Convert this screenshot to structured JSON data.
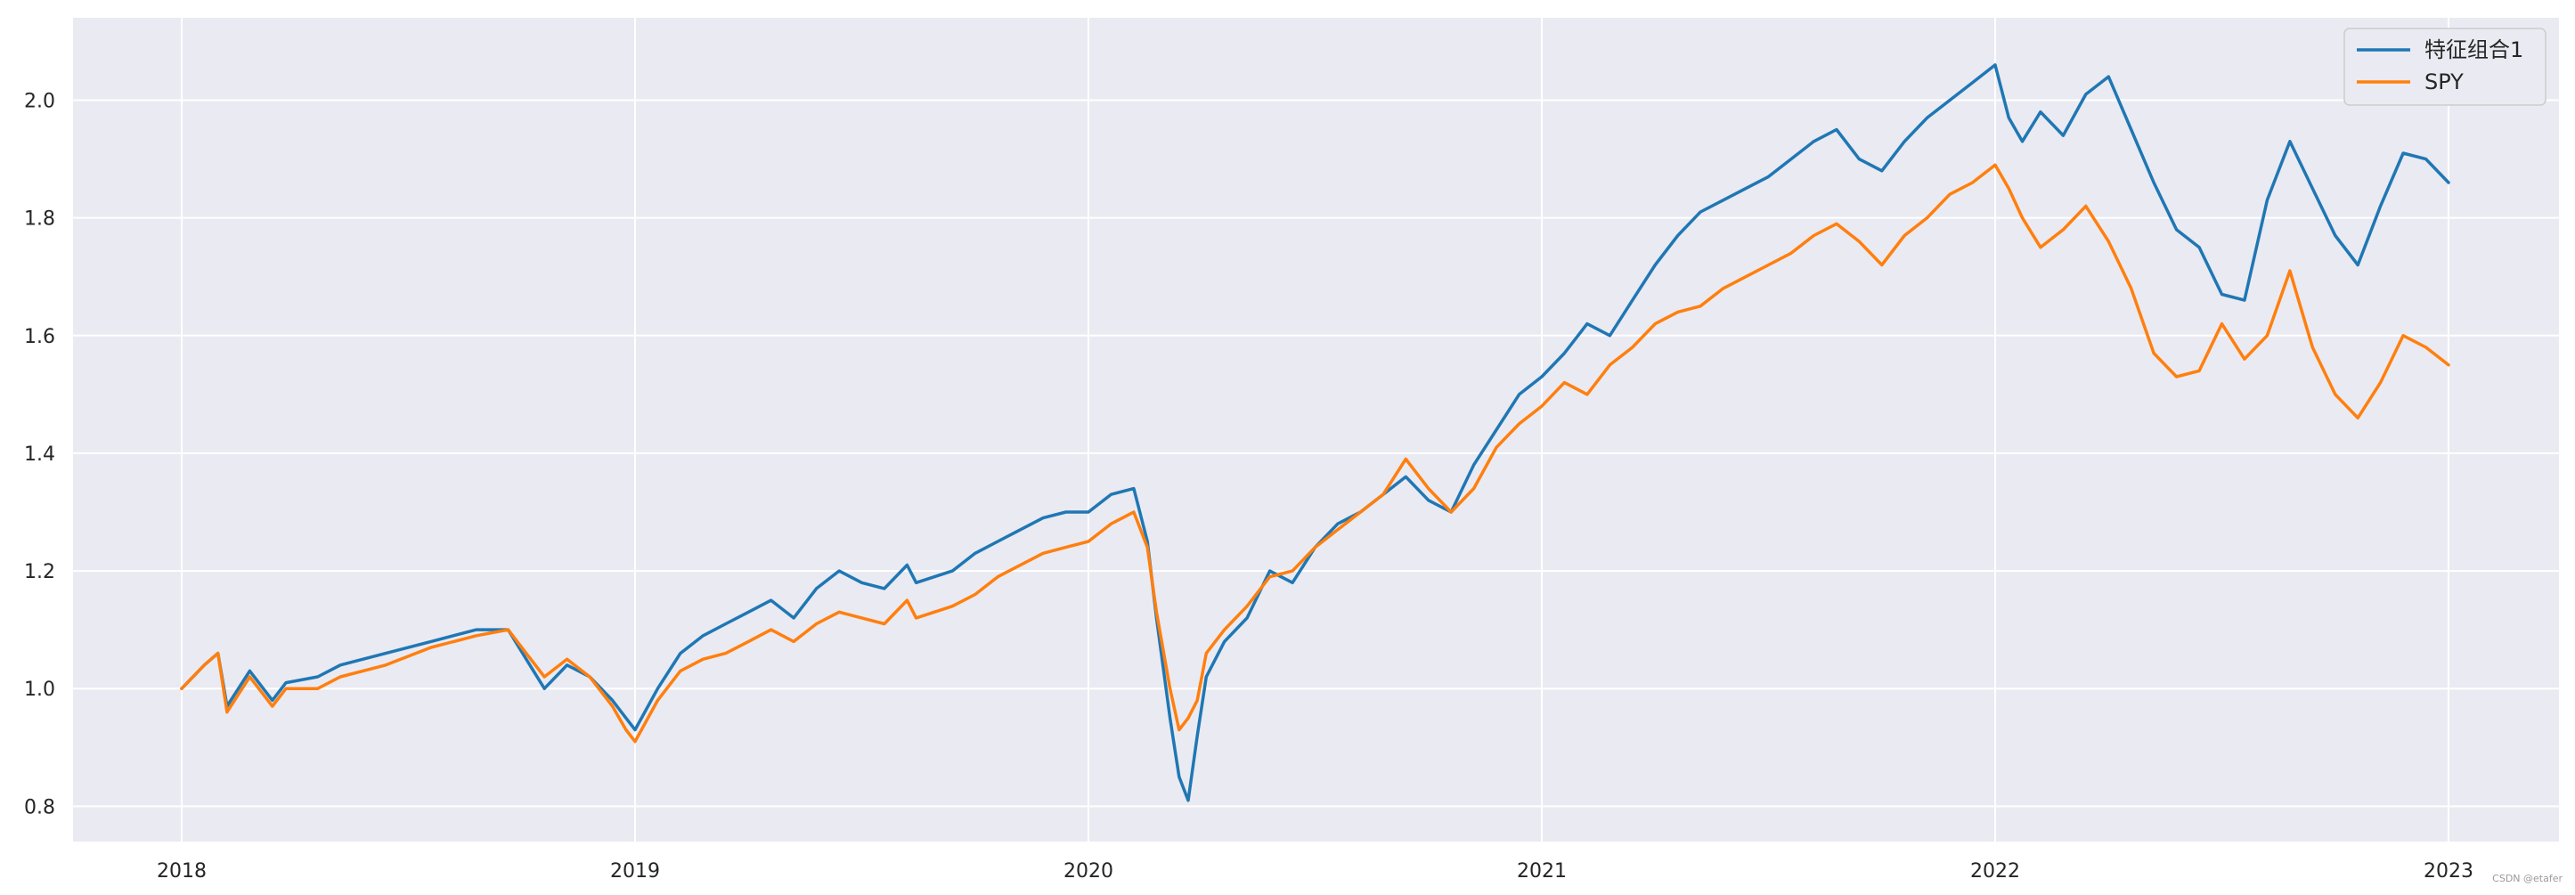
{
  "chart_data": {
    "type": "line",
    "title": "",
    "xlabel": "",
    "ylabel": "",
    "x_ticks": [
      "2018",
      "2019",
      "2020",
      "2021",
      "2022",
      "2023"
    ],
    "y_ticks": [
      "0.8",
      "1.0",
      "1.2",
      "1.4",
      "1.6",
      "1.8",
      "2.0"
    ],
    "xlim": [
      2017.76,
      2024.5
    ],
    "ylim": [
      0.74,
      2.14
    ],
    "grid": true,
    "legend_position": "top-right",
    "series": [
      {
        "name": "特征组合1",
        "color": "#1f77b4",
        "x": [
          2018.0,
          2018.05,
          2018.08,
          2018.1,
          2018.15,
          2018.2,
          2018.23,
          2018.3,
          2018.35,
          2018.45,
          2018.55,
          2018.65,
          2018.72,
          2018.76,
          2018.8,
          2018.85,
          2018.9,
          2018.95,
          2018.98,
          2019.0,
          2019.05,
          2019.1,
          2019.15,
          2019.2,
          2019.25,
          2019.3,
          2019.35,
          2019.4,
          2019.45,
          2019.5,
          2019.55,
          2019.6,
          2019.62,
          2019.7,
          2019.75,
          2019.8,
          2019.85,
          2019.9,
          2019.95,
          2020.0,
          2020.05,
          2020.1,
          2020.13,
          2020.15,
          2020.18,
          2020.2,
          2020.22,
          2020.24,
          2020.26,
          2020.3,
          2020.35,
          2020.4,
          2020.45,
          2020.5,
          2020.55,
          2020.6,
          2020.65,
          2020.7,
          2020.75,
          2020.8,
          2020.85,
          2020.9,
          2020.95,
          2021.0,
          2021.05,
          2021.1,
          2021.15,
          2021.2,
          2021.25,
          2021.3,
          2021.35,
          2021.4,
          2021.45,
          2021.5,
          2021.55,
          2021.6,
          2021.65,
          2021.7,
          2021.75,
          2021.8,
          2021.85,
          2021.9,
          2021.95,
          2022.0,
          2022.03,
          2022.06,
          2022.1,
          2022.15,
          2022.2,
          2022.25,
          2022.3,
          2022.35,
          2022.4,
          2022.45,
          2022.5,
          2022.55,
          2022.6,
          2022.65,
          2022.7,
          2022.75,
          2022.8,
          2022.85,
          2022.9,
          2022.95,
          2023.0
        ],
        "values": [
          1.0,
          1.04,
          1.06,
          0.97,
          1.03,
          0.98,
          1.01,
          1.02,
          1.04,
          1.06,
          1.08,
          1.1,
          1.1,
          1.05,
          1.0,
          1.04,
          1.02,
          0.98,
          0.95,
          0.93,
          1.0,
          1.06,
          1.09,
          1.11,
          1.13,
          1.15,
          1.12,
          1.17,
          1.2,
          1.18,
          1.17,
          1.21,
          1.18,
          1.2,
          1.23,
          1.25,
          1.27,
          1.29,
          1.3,
          1.3,
          1.33,
          1.34,
          1.25,
          1.12,
          0.95,
          0.85,
          0.81,
          0.92,
          1.02,
          1.08,
          1.12,
          1.2,
          1.18,
          1.24,
          1.28,
          1.3,
          1.33,
          1.36,
          1.32,
          1.3,
          1.38,
          1.44,
          1.5,
          1.53,
          1.57,
          1.62,
          1.6,
          1.66,
          1.72,
          1.77,
          1.81,
          1.83,
          1.85,
          1.87,
          1.9,
          1.93,
          1.95,
          1.9,
          1.88,
          1.93,
          1.97,
          2.0,
          2.03,
          2.06,
          1.97,
          1.93,
          1.98,
          1.94,
          2.01,
          2.04,
          1.95,
          1.86,
          1.78,
          1.75,
          1.67,
          1.66,
          1.83,
          1.93,
          1.85,
          1.77,
          1.72,
          1.82,
          1.91,
          1.9,
          1.86
        ]
      },
      {
        "name": "SPY",
        "color": "#ff7f0e",
        "x": [
          2018.0,
          2018.05,
          2018.08,
          2018.1,
          2018.15,
          2018.2,
          2018.23,
          2018.3,
          2018.35,
          2018.45,
          2018.55,
          2018.65,
          2018.72,
          2018.76,
          2018.8,
          2018.85,
          2018.9,
          2018.95,
          2018.98,
          2019.0,
          2019.05,
          2019.1,
          2019.15,
          2019.2,
          2019.25,
          2019.3,
          2019.35,
          2019.4,
          2019.45,
          2019.5,
          2019.55,
          2019.6,
          2019.62,
          2019.7,
          2019.75,
          2019.8,
          2019.85,
          2019.9,
          2019.95,
          2020.0,
          2020.05,
          2020.1,
          2020.13,
          2020.15,
          2020.18,
          2020.2,
          2020.22,
          2020.24,
          2020.26,
          2020.3,
          2020.35,
          2020.4,
          2020.45,
          2020.5,
          2020.55,
          2020.6,
          2020.65,
          2020.7,
          2020.75,
          2020.8,
          2020.85,
          2020.9,
          2020.95,
          2021.0,
          2021.05,
          2021.1,
          2021.15,
          2021.2,
          2021.25,
          2021.3,
          2021.35,
          2021.4,
          2021.45,
          2021.5,
          2021.55,
          2021.6,
          2021.65,
          2021.7,
          2021.75,
          2021.8,
          2021.85,
          2021.9,
          2021.95,
          2022.0,
          2022.03,
          2022.06,
          2022.1,
          2022.15,
          2022.2,
          2022.25,
          2022.3,
          2022.35,
          2022.4,
          2022.45,
          2022.5,
          2022.55,
          2022.6,
          2022.65,
          2022.7,
          2022.75,
          2022.8,
          2022.85,
          2022.9,
          2022.95,
          2023.0
        ],
        "values": [
          1.0,
          1.04,
          1.06,
          0.96,
          1.02,
          0.97,
          1.0,
          1.0,
          1.02,
          1.04,
          1.07,
          1.09,
          1.1,
          1.06,
          1.02,
          1.05,
          1.02,
          0.97,
          0.93,
          0.91,
          0.98,
          1.03,
          1.05,
          1.06,
          1.08,
          1.1,
          1.08,
          1.11,
          1.13,
          1.12,
          1.11,
          1.15,
          1.12,
          1.14,
          1.16,
          1.19,
          1.21,
          1.23,
          1.24,
          1.25,
          1.28,
          1.3,
          1.24,
          1.13,
          1.0,
          0.93,
          0.95,
          0.98,
          1.06,
          1.1,
          1.14,
          1.19,
          1.2,
          1.24,
          1.27,
          1.3,
          1.33,
          1.39,
          1.34,
          1.3,
          1.34,
          1.41,
          1.45,
          1.48,
          1.52,
          1.5,
          1.55,
          1.58,
          1.62,
          1.64,
          1.65,
          1.68,
          1.7,
          1.72,
          1.74,
          1.77,
          1.79,
          1.76,
          1.72,
          1.77,
          1.8,
          1.84,
          1.86,
          1.89,
          1.85,
          1.8,
          1.75,
          1.78,
          1.82,
          1.76,
          1.68,
          1.57,
          1.53,
          1.54,
          1.62,
          1.56,
          1.6,
          1.71,
          1.58,
          1.5,
          1.46,
          1.52,
          1.6,
          1.58,
          1.55
        ]
      }
    ]
  },
  "watermark": "CSDN @etafer"
}
